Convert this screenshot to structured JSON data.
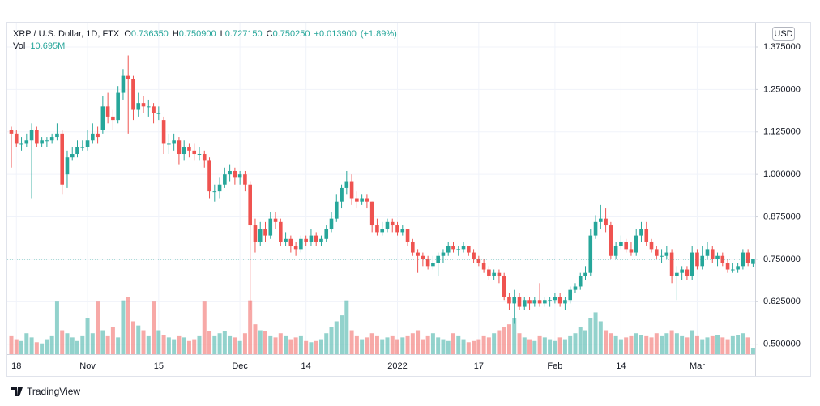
{
  "chart_data": {
    "type": "candlestick",
    "header": {
      "symbol": "XRP / U.S. Dollar, 1D, FTX",
      "fields": [
        {
          "label": "O",
          "value": "0.736350"
        },
        {
          "label": "H",
          "value": "0.750900"
        },
        {
          "label": "L",
          "value": "0.727150"
        },
        {
          "label": "C",
          "value": "0.750250"
        }
      ],
      "change": "+0.013900",
      "change_pct": "(+1.89%)"
    },
    "volume_label": "Vol",
    "volume_value_label": "10.695M",
    "currency": "USD",
    "categories": [
      null,
      "18",
      null,
      null,
      null,
      null,
      null,
      null,
      null,
      null,
      null,
      null,
      null,
      null,
      null,
      "Nov",
      null,
      null,
      null,
      null,
      null,
      null,
      null,
      null,
      null,
      null,
      null,
      null,
      null,
      "15",
      null,
      null,
      null,
      null,
      null,
      null,
      null,
      null,
      null,
      null,
      null,
      null,
      null,
      null,
      null,
      "Dec",
      null,
      null,
      null,
      null,
      null,
      null,
      null,
      null,
      null,
      null,
      null,
      null,
      "14",
      null,
      null,
      null,
      null,
      null,
      null,
      null,
      null,
      null,
      null,
      null,
      null,
      null,
      null,
      null,
      null,
      null,
      "2022",
      null,
      null,
      null,
      null,
      null,
      null,
      null,
      null,
      null,
      null,
      null,
      null,
      null,
      null,
      null,
      "17",
      null,
      null,
      null,
      null,
      null,
      null,
      null,
      null,
      null,
      null,
      null,
      null,
      null,
      null,
      "Feb",
      null,
      null,
      null,
      null,
      null,
      null,
      null,
      null,
      null,
      null,
      null,
      null,
      "14",
      null,
      null,
      null,
      null,
      null,
      null,
      null,
      null,
      null,
      null,
      null,
      null,
      null,
      null,
      "Mar",
      null,
      null,
      null,
      null,
      null,
      null,
      null,
      null,
      null,
      null,
      null
    ],
    "ohlc": [
      [
        1.13,
        1.14,
        1.02,
        1.12
      ],
      [
        1.12,
        1.13,
        1.08,
        1.09
      ],
      [
        1.09,
        1.11,
        1.07,
        1.09
      ],
      [
        1.09,
        1.12,
        1.08,
        1.1
      ],
      [
        1.1,
        1.15,
        0.93,
        1.13
      ],
      [
        1.13,
        1.14,
        1.08,
        1.09
      ],
      [
        1.09,
        1.11,
        1.08,
        1.1
      ],
      [
        1.1,
        1.11,
        1.08,
        1.1
      ],
      [
        1.1,
        1.12,
        1.09,
        1.11
      ],
      [
        1.11,
        1.15,
        1.1,
        1.12
      ],
      [
        1.12,
        1.13,
        0.94,
        0.97
      ],
      [
        1.0,
        1.07,
        0.96,
        1.05
      ],
      [
        1.05,
        1.08,
        1.04,
        1.06
      ],
      [
        1.06,
        1.1,
        1.05,
        1.08
      ],
      [
        1.08,
        1.1,
        1.07,
        1.08
      ],
      [
        1.08,
        1.13,
        1.07,
        1.1
      ],
      [
        1.1,
        1.15,
        1.09,
        1.12
      ],
      [
        1.12,
        1.14,
        1.09,
        1.11
      ],
      [
        1.13,
        1.23,
        1.12,
        1.2
      ],
      [
        1.2,
        1.24,
        1.15,
        1.17
      ],
      [
        1.17,
        1.19,
        1.13,
        1.16
      ],
      [
        1.16,
        1.26,
        1.15,
        1.24
      ],
      [
        1.24,
        1.31,
        1.22,
        1.29
      ],
      [
        1.29,
        1.35,
        1.12,
        1.28
      ],
      [
        1.28,
        1.29,
        1.16,
        1.19
      ],
      [
        1.19,
        1.24,
        1.17,
        1.21
      ],
      [
        1.21,
        1.23,
        1.18,
        1.2
      ],
      [
        1.2,
        1.22,
        1.17,
        1.2
      ],
      [
        1.2,
        1.21,
        1.15,
        1.18
      ],
      [
        1.18,
        1.2,
        1.16,
        1.18
      ],
      [
        1.16,
        1.17,
        1.06,
        1.09
      ],
      [
        1.09,
        1.12,
        1.06,
        1.09
      ],
      [
        1.09,
        1.12,
        1.07,
        1.1
      ],
      [
        1.1,
        1.11,
        1.03,
        1.06
      ],
      [
        1.06,
        1.1,
        1.04,
        1.08
      ],
      [
        1.08,
        1.09,
        1.05,
        1.07
      ],
      [
        1.07,
        1.09,
        1.04,
        1.06
      ],
      [
        1.06,
        1.08,
        1.04,
        1.06
      ],
      [
        1.06,
        1.07,
        1.02,
        1.04
      ],
      [
        1.04,
        1.05,
        0.93,
        0.95
      ],
      [
        0.95,
        0.97,
        0.92,
        0.95
      ],
      [
        0.95,
        0.99,
        0.93,
        0.97
      ],
      [
        0.97,
        1.02,
        0.96,
        1.0
      ],
      [
        1.0,
        1.03,
        0.98,
        1.01
      ],
      [
        1.01,
        1.02,
        0.97,
        0.99
      ],
      [
        0.99,
        1.01,
        0.97,
        1.0
      ],
      [
        1.0,
        1.01,
        0.95,
        0.97
      ],
      [
        0.97,
        0.98,
        0.6,
        0.85
      ],
      [
        0.85,
        0.87,
        0.77,
        0.8
      ],
      [
        0.8,
        0.86,
        0.79,
        0.84
      ],
      [
        0.84,
        0.86,
        0.8,
        0.82
      ],
      [
        0.82,
        0.89,
        0.81,
        0.87
      ],
      [
        0.87,
        0.89,
        0.84,
        0.86
      ],
      [
        0.86,
        0.87,
        0.79,
        0.8
      ],
      [
        0.8,
        0.83,
        0.79,
        0.81
      ],
      [
        0.81,
        0.82,
        0.77,
        0.79
      ],
      [
        0.79,
        0.8,
        0.76,
        0.78
      ],
      [
        0.78,
        0.82,
        0.77,
        0.81
      ],
      [
        0.81,
        0.82,
        0.79,
        0.8
      ],
      [
        0.8,
        0.84,
        0.79,
        0.82
      ],
      [
        0.82,
        0.83,
        0.79,
        0.8
      ],
      [
        0.8,
        0.82,
        0.79,
        0.81
      ],
      [
        0.81,
        0.85,
        0.8,
        0.84
      ],
      [
        0.84,
        0.89,
        0.83,
        0.87
      ],
      [
        0.87,
        0.94,
        0.86,
        0.92
      ],
      [
        0.92,
        0.97,
        0.9,
        0.96
      ],
      [
        0.96,
        1.01,
        0.94,
        0.98
      ],
      [
        0.98,
        1.0,
        0.91,
        0.93
      ],
      [
        0.93,
        0.95,
        0.9,
        0.92
      ],
      [
        0.92,
        0.94,
        0.91,
        0.93
      ],
      [
        0.93,
        0.94,
        0.9,
        0.92
      ],
      [
        0.92,
        0.92,
        0.83,
        0.85
      ],
      [
        0.85,
        0.87,
        0.82,
        0.83
      ],
      [
        0.83,
        0.86,
        0.82,
        0.84
      ],
      [
        0.84,
        0.87,
        0.83,
        0.86
      ],
      [
        0.86,
        0.87,
        0.83,
        0.85
      ],
      [
        0.85,
        0.86,
        0.82,
        0.83
      ],
      [
        0.83,
        0.85,
        0.82,
        0.84
      ],
      [
        0.84,
        0.84,
        0.79,
        0.8
      ],
      [
        0.8,
        0.81,
        0.76,
        0.77
      ],
      [
        0.77,
        0.78,
        0.71,
        0.76
      ],
      [
        0.76,
        0.77,
        0.73,
        0.75
      ],
      [
        0.75,
        0.76,
        0.72,
        0.73
      ],
      [
        0.73,
        0.76,
        0.72,
        0.74
      ],
      [
        0.74,
        0.77,
        0.7,
        0.76
      ],
      [
        0.76,
        0.78,
        0.74,
        0.77
      ],
      [
        0.77,
        0.8,
        0.76,
        0.79
      ],
      [
        0.79,
        0.8,
        0.77,
        0.78
      ],
      [
        0.78,
        0.79,
        0.76,
        0.78
      ],
      [
        0.78,
        0.8,
        0.77,
        0.79
      ],
      [
        0.79,
        0.79,
        0.76,
        0.77
      ],
      [
        0.77,
        0.78,
        0.74,
        0.75
      ],
      [
        0.75,
        0.76,
        0.73,
        0.74
      ],
      [
        0.74,
        0.75,
        0.71,
        0.72
      ],
      [
        0.72,
        0.73,
        0.69,
        0.7
      ],
      [
        0.7,
        0.72,
        0.69,
        0.71
      ],
      [
        0.71,
        0.72,
        0.68,
        0.7
      ],
      [
        0.7,
        0.71,
        0.63,
        0.64
      ],
      [
        0.64,
        0.65,
        0.6,
        0.62
      ],
      [
        0.62,
        0.66,
        0.56,
        0.64
      ],
      [
        0.64,
        0.65,
        0.6,
        0.61
      ],
      [
        0.61,
        0.64,
        0.6,
        0.63
      ],
      [
        0.63,
        0.64,
        0.6,
        0.62
      ],
      [
        0.62,
        0.64,
        0.61,
        0.63
      ],
      [
        0.63,
        0.68,
        0.61,
        0.62
      ],
      [
        0.62,
        0.64,
        0.61,
        0.63
      ],
      [
        0.63,
        0.64,
        0.61,
        0.63
      ],
      [
        0.63,
        0.65,
        0.62,
        0.64
      ],
      [
        0.64,
        0.65,
        0.61,
        0.62
      ],
      [
        0.62,
        0.64,
        0.6,
        0.63
      ],
      [
        0.63,
        0.67,
        0.62,
        0.66
      ],
      [
        0.66,
        0.68,
        0.65,
        0.67
      ],
      [
        0.67,
        0.71,
        0.66,
        0.7
      ],
      [
        0.7,
        0.73,
        0.69,
        0.71
      ],
      [
        0.71,
        0.84,
        0.7,
        0.82
      ],
      [
        0.82,
        0.88,
        0.81,
        0.86
      ],
      [
        0.86,
        0.91,
        0.84,
        0.87
      ],
      [
        0.87,
        0.9,
        0.83,
        0.85
      ],
      [
        0.85,
        0.86,
        0.75,
        0.76
      ],
      [
        0.76,
        0.8,
        0.75,
        0.79
      ],
      [
        0.79,
        0.82,
        0.78,
        0.8
      ],
      [
        0.8,
        0.81,
        0.77,
        0.78
      ],
      [
        0.78,
        0.8,
        0.76,
        0.77
      ],
      [
        0.77,
        0.84,
        0.76,
        0.82
      ],
      [
        0.82,
        0.86,
        0.8,
        0.84
      ],
      [
        0.84,
        0.86,
        0.79,
        0.8
      ],
      [
        0.8,
        0.81,
        0.77,
        0.78
      ],
      [
        0.78,
        0.79,
        0.75,
        0.76
      ],
      [
        0.76,
        0.78,
        0.74,
        0.76
      ],
      [
        0.76,
        0.79,
        0.75,
        0.77
      ],
      [
        0.77,
        0.78,
        0.68,
        0.7
      ],
      [
        0.7,
        0.73,
        0.63,
        0.71
      ],
      [
        0.71,
        0.73,
        0.69,
        0.72
      ],
      [
        0.72,
        0.73,
        0.69,
        0.7
      ],
      [
        0.7,
        0.79,
        0.69,
        0.77
      ],
      [
        0.77,
        0.78,
        0.72,
        0.73
      ],
      [
        0.73,
        0.79,
        0.72,
        0.76
      ],
      [
        0.76,
        0.8,
        0.75,
        0.78
      ],
      [
        0.78,
        0.79,
        0.74,
        0.75
      ],
      [
        0.75,
        0.77,
        0.73,
        0.76
      ],
      [
        0.76,
        0.77,
        0.73,
        0.74
      ],
      [
        0.74,
        0.75,
        0.71,
        0.72
      ],
      [
        0.72,
        0.74,
        0.71,
        0.72
      ],
      [
        0.72,
        0.74,
        0.71,
        0.73
      ],
      [
        0.73,
        0.78,
        0.72,
        0.77
      ],
      [
        0.77,
        0.78,
        0.73,
        0.74
      ],
      [
        0.73635,
        0.7509,
        0.72715,
        0.75025
      ]
    ],
    "volume": [
      30,
      25,
      22,
      35,
      28,
      20,
      18,
      25,
      30,
      88,
      40,
      35,
      28,
      22,
      30,
      60,
      35,
      88,
      40,
      30,
      45,
      28,
      90,
      95,
      55,
      48,
      40,
      30,
      88,
      40,
      32,
      28,
      25,
      30,
      28,
      22,
      25,
      30,
      88,
      38,
      30,
      35,
      38,
      30,
      28,
      22,
      35,
      90,
      50,
      40,
      38,
      30,
      28,
      35,
      30,
      25,
      28,
      30,
      22,
      20,
      22,
      25,
      35,
      45,
      55,
      65,
      90,
      40,
      30,
      25,
      28,
      35,
      30,
      25,
      28,
      30,
      25,
      28,
      30,
      35,
      40,
      25,
      30,
      35,
      28,
      25,
      22,
      35,
      30,
      25,
      20,
      22,
      25,
      30,
      28,
      35,
      40,
      45,
      50,
      60,
      35,
      28,
      25,
      22,
      30,
      28,
      25,
      22,
      28,
      25,
      30,
      35,
      45,
      40,
      60,
      70,
      55,
      40,
      35,
      30,
      25,
      28,
      30,
      35,
      32,
      30,
      28,
      35,
      30,
      35,
      40,
      35,
      30,
      28,
      40,
      30,
      25,
      28,
      30,
      32,
      28,
      25,
      30,
      32,
      35,
      28,
      10.695
    ],
    "ylim": [
      0.4707,
      1.4418
    ],
    "yticks": [
      {
        "value": 0.5,
        "label": "0.500000"
      },
      {
        "value": 0.625,
        "label": "0.625000"
      },
      {
        "value": 0.75,
        "label": "0.750000"
      },
      {
        "value": 0.875,
        "label": "0.875000"
      },
      {
        "value": 1.0,
        "label": "1.000000"
      },
      {
        "value": 1.125,
        "label": "1.125000"
      },
      {
        "value": 1.25,
        "label": "1.250000"
      },
      {
        "value": 1.375,
        "label": "1.375000"
      }
    ],
    "grid": true,
    "up_color": "#26a69a",
    "down_color": "#ef5350"
  },
  "footer": {
    "brand": "TradingView"
  }
}
